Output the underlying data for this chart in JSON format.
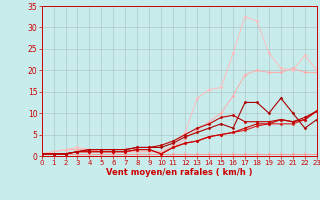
{
  "background_color": "#c8ecec",
  "grid_color": "#b0c8c8",
  "xlabel": "Vent moyen/en rafales ( km/h )",
  "xlabel_color": "#cc0000",
  "tick_color": "#cc0000",
  "xlim": [
    0,
    23
  ],
  "ylim": [
    0,
    35
  ],
  "xticks": [
    0,
    1,
    2,
    3,
    4,
    5,
    6,
    7,
    8,
    9,
    10,
    11,
    12,
    13,
    14,
    15,
    16,
    17,
    18,
    19,
    20,
    21,
    22,
    23
  ],
  "yticks": [
    0,
    5,
    10,
    15,
    20,
    25,
    30,
    35
  ],
  "series": [
    {
      "x": [
        0,
        1,
        2,
        3,
        4,
        5,
        6,
        7,
        8,
        9,
        10,
        11,
        12,
        13,
        14,
        15,
        16,
        17,
        18,
        19,
        20,
        21,
        22,
        23
      ],
      "y": [
        0.5,
        0.5,
        0.5,
        0.5,
        0.5,
        0.5,
        0.5,
        0.5,
        0.5,
        0.5,
        0.5,
        0.5,
        0.5,
        0.5,
        0.5,
        0.5,
        0.5,
        0.5,
        0.5,
        0.5,
        0.5,
        0.5,
        0.5,
        0.5
      ],
      "color": "#ff9999",
      "marker": "D",
      "markersize": 1.5,
      "linewidth": 0.7
    },
    {
      "x": [
        0,
        2,
        3,
        4,
        5,
        10,
        11,
        12,
        13,
        14,
        15,
        16,
        17,
        18,
        19,
        20,
        21,
        22,
        23
      ],
      "y": [
        0.5,
        1.5,
        1.5,
        1.5,
        1.0,
        1.0,
        2.0,
        4.0,
        6.0,
        8.0,
        10.0,
        14.0,
        19.0,
        20.0,
        19.5,
        19.5,
        20.5,
        19.5,
        19.5
      ],
      "color": "#ffaaaa",
      "marker": "D",
      "markersize": 1.5,
      "linewidth": 0.7
    },
    {
      "x": [
        0,
        2,
        3,
        4,
        5,
        10,
        11,
        12,
        13,
        14,
        15,
        16,
        17,
        18,
        19,
        20,
        21,
        22,
        23
      ],
      "y": [
        0.5,
        1.5,
        2.0,
        1.5,
        1.0,
        1.0,
        2.5,
        5.5,
        13.5,
        15.5,
        16.0,
        24.0,
        32.5,
        31.5,
        24.0,
        20.5,
        20.0,
        23.5,
        20.0
      ],
      "color": "#ffbbbb",
      "marker": "D",
      "markersize": 1.5,
      "linewidth": 0.7
    },
    {
      "x": [
        0,
        1,
        2,
        3,
        4,
        5,
        6,
        7,
        8,
        9,
        10,
        11,
        12,
        13,
        14,
        15,
        16,
        17,
        18,
        19,
        20,
        21,
        22,
        23
      ],
      "y": [
        0.5,
        0.5,
        0.5,
        1.0,
        1.0,
        1.0,
        1.0,
        1.0,
        1.5,
        1.5,
        0.5,
        2.0,
        3.0,
        3.5,
        4.5,
        5.0,
        5.5,
        6.0,
        7.0,
        7.5,
        7.5,
        7.5,
        8.5,
        10.5
      ],
      "color": "#dd2222",
      "marker": "D",
      "markersize": 1.5,
      "linewidth": 0.8
    },
    {
      "x": [
        0,
        1,
        2,
        3,
        4,
        5,
        6,
        7,
        8,
        9,
        10,
        11,
        12,
        13,
        14,
        15,
        16,
        17,
        18,
        19,
        20,
        21,
        22,
        23
      ],
      "y": [
        0.5,
        0.5,
        0.5,
        1.0,
        1.0,
        1.0,
        1.0,
        1.0,
        1.5,
        1.5,
        0.5,
        2.0,
        3.0,
        3.5,
        4.5,
        5.0,
        5.5,
        6.5,
        7.5,
        7.5,
        8.5,
        8.0,
        8.5,
        10.5
      ],
      "color": "#cc0000",
      "marker": "D",
      "markersize": 1.5,
      "linewidth": 0.8
    },
    {
      "x": [
        0,
        1,
        2,
        3,
        4,
        5,
        6,
        7,
        8,
        9,
        10,
        11,
        12,
        13,
        14,
        15,
        16,
        17,
        18,
        19,
        20,
        21,
        22,
        23
      ],
      "y": [
        0.5,
        0.5,
        0.5,
        1.0,
        1.5,
        1.5,
        1.5,
        1.5,
        2.0,
        2.0,
        2.0,
        3.0,
        4.5,
        5.5,
        6.5,
        7.5,
        6.5,
        12.5,
        12.5,
        10.0,
        13.5,
        10.0,
        6.5,
        8.5
      ],
      "color": "#aa0000",
      "marker": "D",
      "markersize": 1.5,
      "linewidth": 0.8
    },
    {
      "x": [
        0,
        1,
        2,
        3,
        4,
        5,
        6,
        7,
        8,
        9,
        10,
        11,
        12,
        13,
        14,
        15,
        16,
        17,
        18,
        19,
        20,
        21,
        22,
        23
      ],
      "y": [
        0.5,
        0.5,
        0.5,
        1.0,
        1.5,
        1.5,
        1.5,
        1.5,
        2.0,
        2.0,
        2.5,
        3.5,
        5.0,
        6.5,
        7.5,
        9.0,
        9.5,
        8.0,
        8.0,
        8.0,
        8.5,
        8.0,
        9.0,
        10.5
      ],
      "color": "#bb0000",
      "marker": "D",
      "markersize": 1.5,
      "linewidth": 0.8
    }
  ]
}
